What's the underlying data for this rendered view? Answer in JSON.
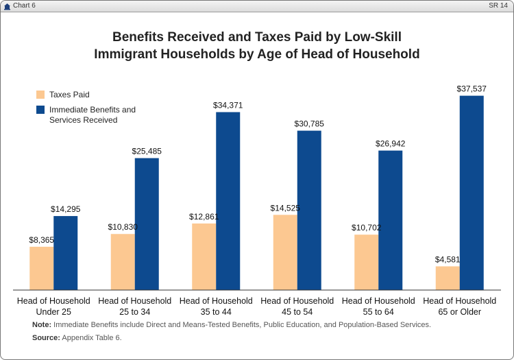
{
  "header": {
    "chart_label": "Chart 6",
    "report_id": "SR 14"
  },
  "chart_data": {
    "type": "bar",
    "title": "Benefits Received and Taxes Paid by Low-Skill Immigrant Households by Age of Head of Household",
    "title_lines": [
      "Benefits Received and Taxes Paid by Low-Skill",
      "Immigrant Households by Age of Head of Household"
    ],
    "categories": [
      "Head of Household Under 25",
      "Head of Household 25 to 34",
      "Head of Household 35 to 44",
      "Head of Household 45 to 54",
      "Head of Household 55 to 64",
      "Head of Household 65 or Older"
    ],
    "category_lines": [
      [
        "Head of Household",
        "Under 25"
      ],
      [
        "Head of Household",
        "25 to 34"
      ],
      [
        "Head of Household",
        "35 to 44"
      ],
      [
        "Head of Household",
        "45 to 54"
      ],
      [
        "Head of Household",
        "55 to 64"
      ],
      [
        "Head of Household",
        "65 or Older"
      ]
    ],
    "series": [
      {
        "name": "Taxes Paid",
        "legend_lines": [
          "Taxes Paid"
        ],
        "color": "#fcc891",
        "values": [
          8365,
          10830,
          12861,
          14525,
          10702,
          4581
        ],
        "labels": [
          "$8,365",
          "$10,830",
          "$12,861",
          "$14,525",
          "$10,702",
          "$4,581"
        ]
      },
      {
        "name": "Immediate Benefits and Services Received",
        "legend_lines": [
          "Immediate Benefits and",
          "Services Received"
        ],
        "color": "#0d4a8f",
        "values": [
          14295,
          25485,
          34371,
          30785,
          26942,
          37537
        ],
        "labels": [
          "$14,295",
          "$25,485",
          "$34,371",
          "$30,785",
          "$26,942",
          "$37,537"
        ]
      }
    ],
    "xlabel": "",
    "ylabel": "",
    "ylim": [
      0,
      40000
    ],
    "grid": false,
    "legend_position": "top-left"
  },
  "footer": {
    "note_label": "Note:",
    "note_text": "Immediate Benefits include Direct and Means-Tested Benefits, Public Education, and Population-Based Services.",
    "source_label": "Source:",
    "source_text": "Appendix Table 6."
  }
}
